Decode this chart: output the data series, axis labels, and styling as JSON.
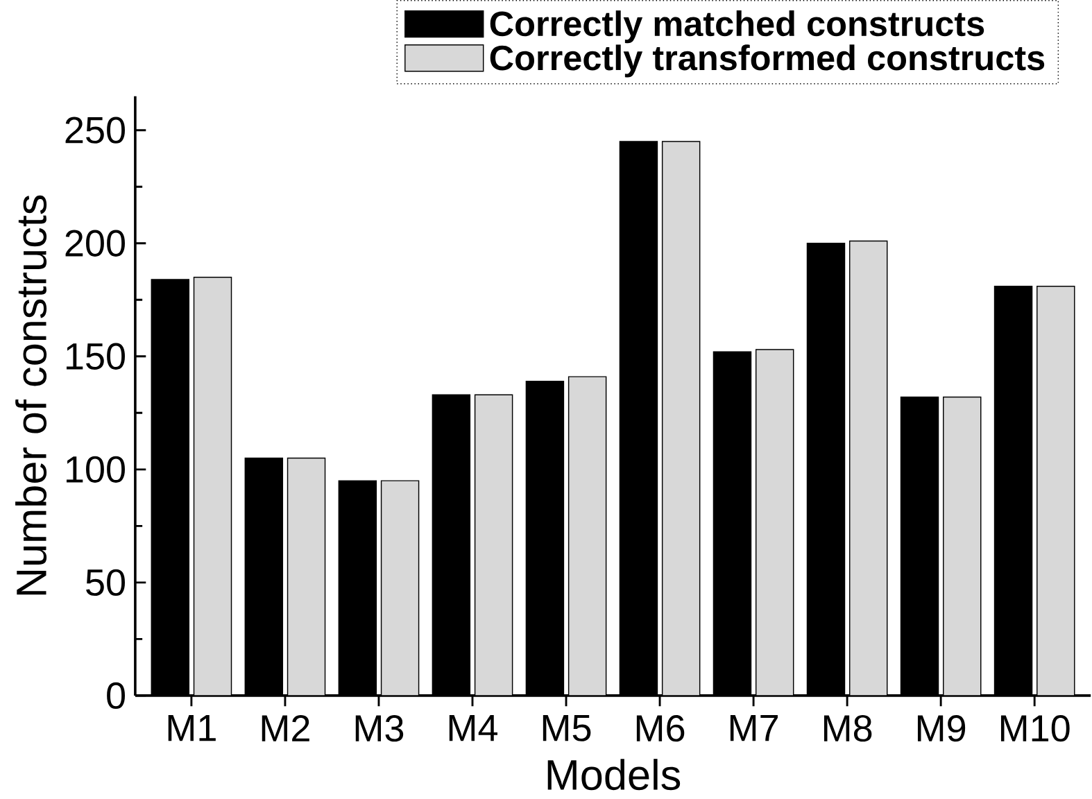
{
  "chart_data": {
    "type": "bar",
    "xlabel": "Models",
    "ylabel": "Number of constructs",
    "categories": [
      "M1",
      "M2",
      "M3",
      "M4",
      "M5",
      "M6",
      "M7",
      "M8",
      "M9",
      "M10"
    ],
    "series": [
      {
        "name": "Correctly matched constructs",
        "color": "#000000",
        "values": [
          184,
          105,
          95,
          133,
          139,
          245,
          152,
          200,
          132,
          181
        ]
      },
      {
        "name": "Correctly transformed constructs",
        "color": "#d8d8d8",
        "values": [
          185,
          105,
          95,
          133,
          141,
          245,
          153,
          201,
          132,
          181
        ]
      }
    ],
    "ylim": [
      0,
      265
    ],
    "yticks": [
      0,
      50,
      100,
      150,
      200,
      250
    ],
    "legend": "top",
    "grid": false
  }
}
